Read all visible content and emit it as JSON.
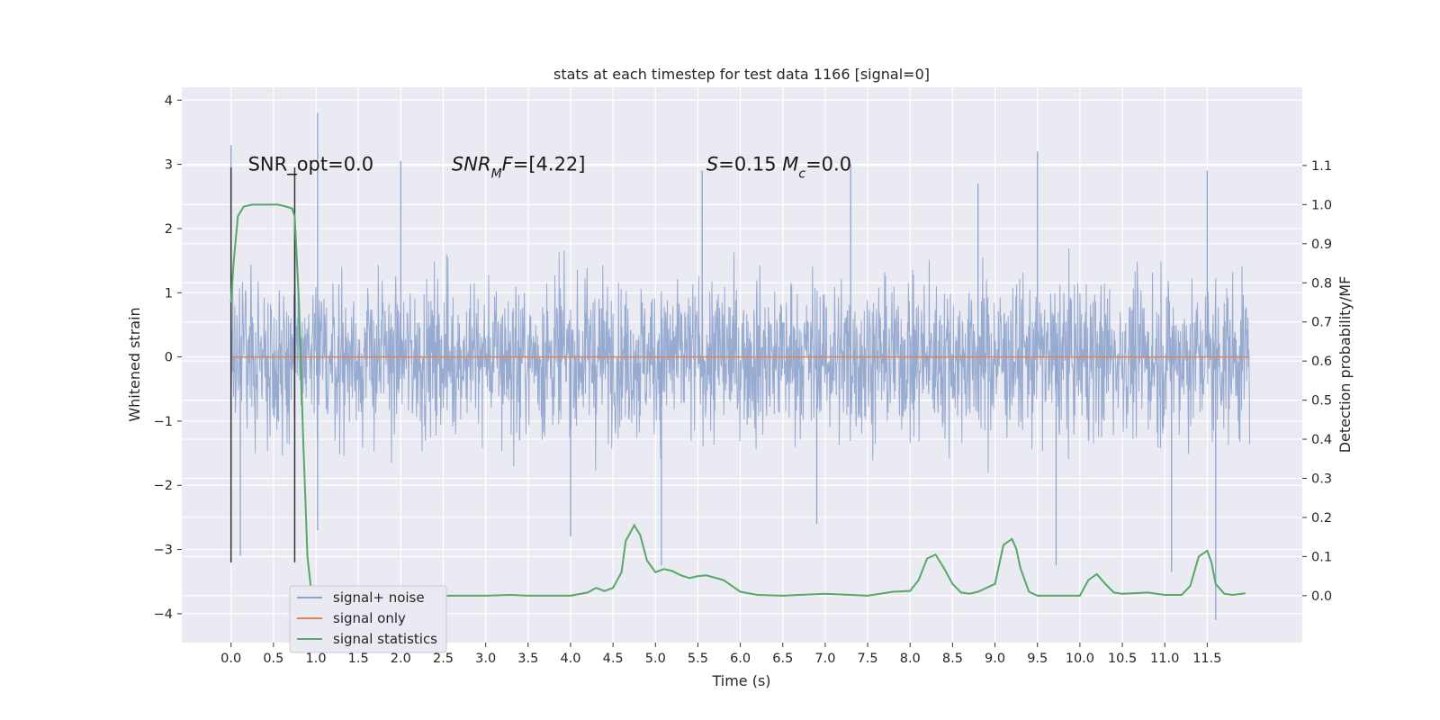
{
  "chart_data": {
    "type": "line",
    "title": "stats at each timestep for test data 1166 [signal=0]",
    "xlabel": "Time (s)",
    "ylabel": "Whitened strain",
    "y2label": "Detection probability/MF",
    "xlim": [
      -0.58,
      12.62
    ],
    "ylim": [
      -4.45,
      4.2
    ],
    "y2lim": [
      -0.12,
      1.3
    ],
    "xticks": [
      0.0,
      0.5,
      1.0,
      1.5,
      2.0,
      2.5,
      3.0,
      3.5,
      4.0,
      4.5,
      5.0,
      5.5,
      6.0,
      6.5,
      7.0,
      7.5,
      8.0,
      8.5,
      9.0,
      9.5,
      10.0,
      10.5,
      11.0,
      11.5
    ],
    "xtick_labels": [
      "0.0",
      "0.5",
      "1.0",
      "1.5",
      "2.0",
      "2.5",
      "3.0",
      "3.5",
      "4.0",
      "4.5",
      "5.0",
      "5.5",
      "6.0",
      "6.5",
      "7.0",
      "7.5",
      "8.0",
      "8.5",
      "9.0",
      "9.5",
      "10.0",
      "10.5",
      "11.0",
      "11.5"
    ],
    "yticks": [
      -4,
      -3,
      -2,
      -1,
      0,
      1,
      2,
      3,
      4
    ],
    "ytick_labels": [
      "−4",
      "−3",
      "−2",
      "−1",
      "0",
      "1",
      "2",
      "3",
      "4"
    ],
    "y2ticks": [
      0.0,
      0.1,
      0.2,
      0.3,
      0.4,
      0.5,
      0.6,
      0.7,
      0.8,
      0.9,
      1.0,
      1.1
    ],
    "y2tick_labels": [
      "0.0",
      "0.1",
      "0.2",
      "0.3",
      "0.4",
      "0.5",
      "0.6",
      "0.7",
      "0.8",
      "0.9",
      "1.0",
      "1.1"
    ],
    "grid": true,
    "legend_placement": "lower-left",
    "colors": {
      "background": "#eaeaf2",
      "grid": "#ffffff",
      "signal_noise": "#8ea3cc",
      "signal_only": "#dd8452",
      "statistics": "#55a868",
      "vline": "#333333"
    },
    "series": [
      {
        "name": "signal+ noise",
        "description_key": "noise",
        "t_start": 0.0,
        "t_end": 12.0,
        "band_typical": [
          -1.9,
          1.7
        ],
        "outliers": [
          [
            0.0,
            3.3
          ],
          [
            0.0,
            -3.2
          ],
          [
            0.11,
            -3.1
          ],
          [
            1.02,
            3.8
          ],
          [
            1.02,
            -2.7
          ],
          [
            2.0,
            3.05
          ],
          [
            3.4,
            -1.3
          ],
          [
            4.0,
            -2.8
          ],
          [
            5.07,
            -3.25
          ],
          [
            5.55,
            2.9
          ],
          [
            9.5,
            3.2
          ],
          [
            9.72,
            -3.25
          ],
          [
            11.08,
            -3.35
          ],
          [
            11.6,
            -4.1
          ],
          [
            11.5,
            2.9
          ],
          [
            7.3,
            3.0
          ],
          [
            8.8,
            2.7
          ],
          [
            6.9,
            -2.6
          ]
        ]
      },
      {
        "name": "signal only",
        "x": [
          0.0,
          12.0
        ],
        "y": [
          0.0,
          0.0
        ]
      },
      {
        "name": "signal statistics",
        "x": [
          0.0,
          0.03,
          0.08,
          0.15,
          0.25,
          0.4,
          0.55,
          0.65,
          0.72,
          0.75,
          0.8,
          0.85,
          0.9,
          0.95,
          1.0,
          1.5,
          2.0,
          2.5,
          3.0,
          3.3,
          3.5,
          4.0,
          4.2,
          4.3,
          4.4,
          4.5,
          4.6,
          4.65,
          4.75,
          4.82,
          4.9,
          5.0,
          5.1,
          5.2,
          5.3,
          5.4,
          5.5,
          5.6,
          5.8,
          6.0,
          6.2,
          6.5,
          7.0,
          7.5,
          7.8,
          8.0,
          8.1,
          8.2,
          8.3,
          8.4,
          8.5,
          8.6,
          8.7,
          8.8,
          9.0,
          9.1,
          9.2,
          9.25,
          9.3,
          9.4,
          9.5,
          9.6,
          9.8,
          10.0,
          10.1,
          10.2,
          10.3,
          10.4,
          10.5,
          10.8,
          11.0,
          11.2,
          11.3,
          11.4,
          11.5,
          11.55,
          11.6,
          11.7,
          11.8,
          11.95
        ],
        "y": [
          0.75,
          0.85,
          0.97,
          0.995,
          1.0,
          1.0,
          1.0,
          0.995,
          0.99,
          0.97,
          0.75,
          0.4,
          0.1,
          0.003,
          0.0,
          0.0,
          0.0,
          0.0,
          0.0,
          0.002,
          0.0,
          0.0,
          0.008,
          0.02,
          0.012,
          0.02,
          0.06,
          0.14,
          0.18,
          0.155,
          0.09,
          0.06,
          0.068,
          0.063,
          0.052,
          0.045,
          0.05,
          0.052,
          0.04,
          0.01,
          0.002,
          0.0,
          0.005,
          0.0,
          0.01,
          0.012,
          0.04,
          0.095,
          0.105,
          0.07,
          0.03,
          0.008,
          0.005,
          0.01,
          0.03,
          0.13,
          0.145,
          0.12,
          0.07,
          0.01,
          0.0,
          0.0,
          0.0,
          0.0,
          0.04,
          0.055,
          0.03,
          0.008,
          0.005,
          0.008,
          0.002,
          0.002,
          0.025,
          0.1,
          0.115,
          0.085,
          0.03,
          0.005,
          0.002,
          0.006
        ]
      }
    ],
    "vlines": [
      {
        "x": 0.0,
        "ymin": -3.2,
        "ymax": 2.95
      },
      {
        "x": 0.75,
        "ymin": -3.2,
        "ymax": 2.95
      }
    ],
    "annotations": [
      {
        "x": 0.2,
        "y": 3.0,
        "parts": [
          {
            "t": "SNR_opt=0.0",
            "i": false
          }
        ]
      },
      {
        "x": 2.6,
        "y": 3.0,
        "parts": [
          {
            "t": "SNR",
            "i": true
          },
          {
            "t": "M",
            "i": true,
            "sub": true
          },
          {
            "t": "F",
            "i": true
          },
          {
            "t": "=[4.22]",
            "i": false
          }
        ]
      },
      {
        "x": 5.6,
        "y": 3.0,
        "parts": [
          {
            "t": "S",
            "i": true
          },
          {
            "t": "=0.15   ",
            "i": false
          },
          {
            "t": "M",
            "i": true
          },
          {
            "t": "c",
            "i": true,
            "sub": true
          },
          {
            "t": "=0.0",
            "i": false
          }
        ]
      }
    ],
    "legend": [
      {
        "label": "signal+ noise",
        "color_key": "signal_noise"
      },
      {
        "label": "signal only",
        "color_key": "signal_only"
      },
      {
        "label": "signal statistics",
        "color_key": "statistics"
      }
    ]
  }
}
